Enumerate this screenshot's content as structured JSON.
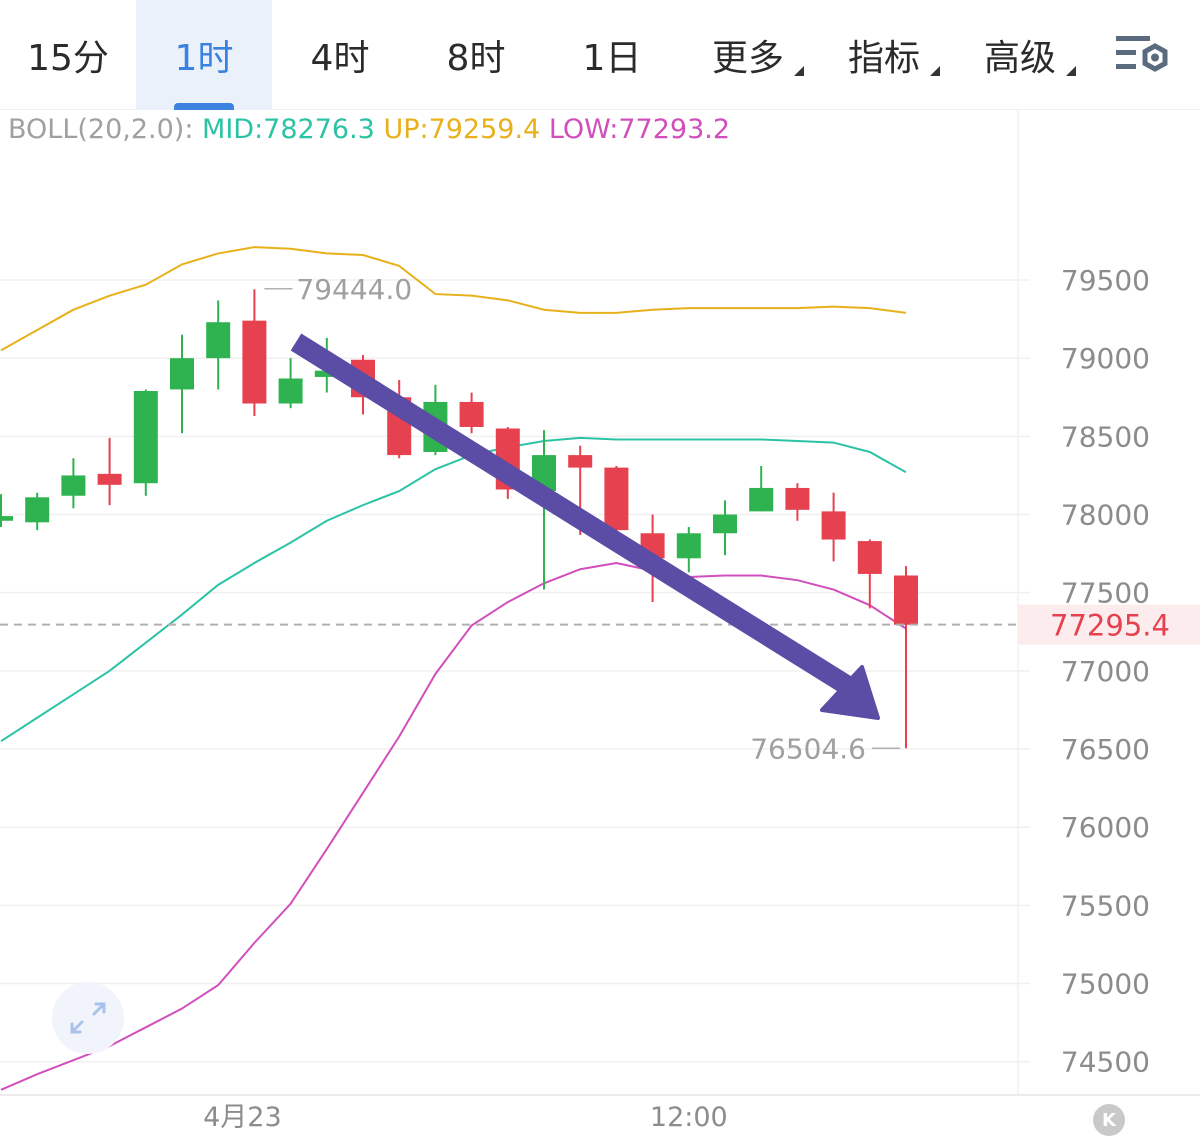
{
  "tabs": [
    {
      "label": "15分",
      "active": false,
      "dropdown": false
    },
    {
      "label": "1时",
      "active": true,
      "dropdown": false
    },
    {
      "label": "4时",
      "active": false,
      "dropdown": false
    },
    {
      "label": "8时",
      "active": false,
      "dropdown": false
    },
    {
      "label": "1日",
      "active": false,
      "dropdown": false
    },
    {
      "label": "更多",
      "active": false,
      "dropdown": true
    },
    {
      "label": "指标",
      "active": false,
      "dropdown": true
    },
    {
      "label": "高级",
      "active": false,
      "dropdown": true
    }
  ],
  "settings_icon": "settings-icon",
  "legend": {
    "name": "BOLL(20,2.0):",
    "mid": "MID:78276.3",
    "up": "UP:79259.4",
    "low": "LOW:77293.2"
  },
  "colors": {
    "up_candle": "#2fb350",
    "down_candle": "#e5414f",
    "mid_line": "#2cc3a5",
    "upper_band": "#e8b11c",
    "lower_band": "#d14fbd",
    "arrow": "#5b4da6",
    "active_tab": "#3b82e0"
  },
  "chart_data": {
    "type": "candlestick",
    "x_labels": [
      "4月23",
      "12:00"
    ],
    "y_ticks": [
      79500,
      79000,
      78500,
      78000,
      77500,
      77000,
      76500,
      76000,
      75500,
      75000,
      74500
    ],
    "ylim": [
      74300,
      80700
    ],
    "last_price": "77295.4",
    "last_price_value": 77295.4,
    "max_label": "79444.0",
    "max_value": 79444.0,
    "min_label": "76504.6",
    "min_value": 76504.6,
    "candles": [
      {
        "o": 77960,
        "h": 78130,
        "l": 77920,
        "c": 77990
      },
      {
        "o": 77950,
        "h": 78140,
        "l": 77900,
        "c": 78110
      },
      {
        "o": 78120,
        "h": 78360,
        "l": 78040,
        "c": 78250
      },
      {
        "o": 78260,
        "h": 78490,
        "l": 78060,
        "c": 78190
      },
      {
        "o": 78200,
        "h": 78800,
        "l": 78120,
        "c": 78790
      },
      {
        "o": 78800,
        "h": 79150,
        "l": 78520,
        "c": 79000
      },
      {
        "o": 79000,
        "h": 79370,
        "l": 78800,
        "c": 79230
      },
      {
        "o": 79240,
        "h": 79440,
        "l": 78630,
        "c": 78710
      },
      {
        "o": 78710,
        "h": 79000,
        "l": 78680,
        "c": 78870
      },
      {
        "o": 78880,
        "h": 79130,
        "l": 78780,
        "c": 78920
      },
      {
        "o": 78990,
        "h": 79020,
        "l": 78640,
        "c": 78750
      },
      {
        "o": 78750,
        "h": 78860,
        "l": 78360,
        "c": 78380
      },
      {
        "o": 78400,
        "h": 78830,
        "l": 78380,
        "c": 78720
      },
      {
        "o": 78720,
        "h": 78780,
        "l": 78520,
        "c": 78560
      },
      {
        "o": 78550,
        "h": 78560,
        "l": 78100,
        "c": 78160
      },
      {
        "o": 78150,
        "h": 78540,
        "l": 77520,
        "c": 78380
      },
      {
        "o": 78380,
        "h": 78440,
        "l": 77870,
        "c": 78300
      },
      {
        "o": 78300,
        "h": 78310,
        "l": 77880,
        "c": 77900
      },
      {
        "o": 77880,
        "h": 78000,
        "l": 77440,
        "c": 77720
      },
      {
        "o": 77720,
        "h": 77920,
        "l": 77630,
        "c": 77880
      },
      {
        "o": 77880,
        "h": 78090,
        "l": 77740,
        "c": 78000
      },
      {
        "o": 78020,
        "h": 78310,
        "l": 78020,
        "c": 78170
      },
      {
        "o": 78170,
        "h": 78200,
        "l": 77960,
        "c": 78030
      },
      {
        "o": 78020,
        "h": 78140,
        "l": 77700,
        "c": 77840
      },
      {
        "o": 77830,
        "h": 77840,
        "l": 77400,
        "c": 77620
      },
      {
        "o": 77610,
        "h": 77670,
        "l": 76505,
        "c": 77295
      }
    ],
    "boll_upper": [
      79050,
      79180,
      79310,
      79400,
      79470,
      79600,
      79670,
      79710,
      79700,
      79670,
      79660,
      79590,
      79410,
      79400,
      79370,
      79310,
      79290,
      79290,
      79310,
      79320,
      79320,
      79320,
      79320,
      79330,
      79320,
      79290
    ],
    "boll_mid": [
      76550,
      76700,
      76850,
      77000,
      77180,
      77360,
      77550,
      77690,
      77820,
      77960,
      78060,
      78150,
      78290,
      78380,
      78430,
      78470,
      78490,
      78480,
      78480,
      78480,
      78480,
      78480,
      78470,
      78460,
      78400,
      78270
    ],
    "boll_lower": [
      74320,
      74420,
      74510,
      74600,
      74720,
      74840,
      74990,
      75260,
      75510,
      75860,
      76220,
      76580,
      76980,
      77290,
      77440,
      77560,
      77650,
      77690,
      77640,
      77600,
      77610,
      77610,
      77580,
      77520,
      77420,
      77270
    ]
  }
}
